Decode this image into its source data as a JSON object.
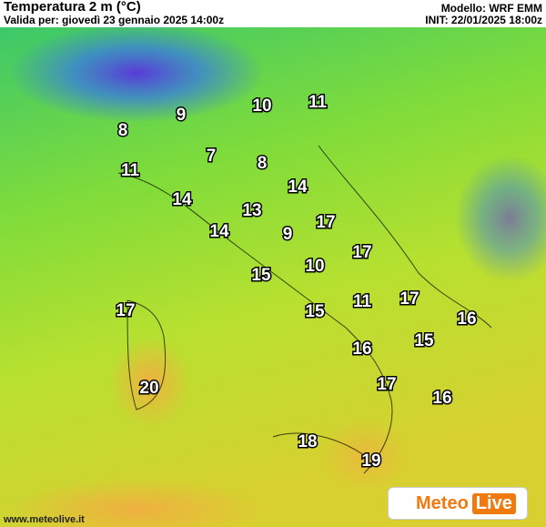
{
  "header": {
    "title": "Temperatura 2 m (°C)",
    "valid": "Valida per: giovedì 23 gennaio 2025 14:00z",
    "model": "Modello: WRF EMM",
    "init": "INIT: 22/01/2025 18:00z"
  },
  "temperatures": [
    10,
    11,
    9,
    8,
    7,
    8,
    11,
    14,
    14,
    13,
    17,
    14,
    9,
    17,
    10,
    15,
    17,
    11,
    15,
    17,
    16,
    16,
    15,
    17,
    20,
    16,
    18,
    19
  ],
  "footer": {
    "site": "www.meteolive.it",
    "logo_meteo": "Meteo",
    "logo_live": "Live"
  }
}
